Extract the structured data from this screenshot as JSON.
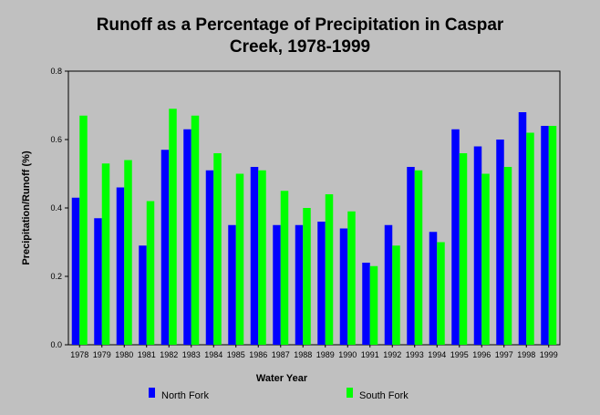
{
  "chart_data": {
    "type": "bar",
    "title_line1": "Runoff as a Percentage of Precipitation in Caspar",
    "title_line2": "Creek, 1978-1999",
    "xlabel": "Water Year",
    "ylabel": "Precipitation/Runoff (%)",
    "ylim": [
      0,
      0.8
    ],
    "yticks": [
      "0.0",
      "0.2",
      "0.4",
      "0.6",
      "0.8"
    ],
    "grid": false,
    "legend_position": "bottom",
    "categories": [
      "1978",
      "1979",
      "1980",
      "1981",
      "1982",
      "1983",
      "1984",
      "1985",
      "1986",
      "1987",
      "1988",
      "1989",
      "1990",
      "1991",
      "1992",
      "1993",
      "1994",
      "1995",
      "1996",
      "1997",
      "1998",
      "1999"
    ],
    "series": [
      {
        "name": "North Fork",
        "color": "#0000ff",
        "values": [
          0.43,
          0.37,
          0.46,
          0.29,
          0.57,
          0.63,
          0.51,
          0.35,
          0.52,
          0.35,
          0.35,
          0.36,
          0.34,
          0.24,
          0.35,
          0.52,
          0.33,
          0.63,
          0.58,
          0.6,
          0.68,
          0.64
        ]
      },
      {
        "name": "South Fork",
        "color": "#00ff00",
        "values": [
          0.67,
          0.53,
          0.54,
          0.42,
          0.69,
          0.67,
          0.56,
          0.5,
          0.51,
          0.45,
          0.4,
          0.44,
          0.39,
          0.23,
          0.29,
          0.51,
          0.3,
          0.56,
          0.5,
          0.52,
          0.62,
          0.64
        ]
      }
    ]
  }
}
